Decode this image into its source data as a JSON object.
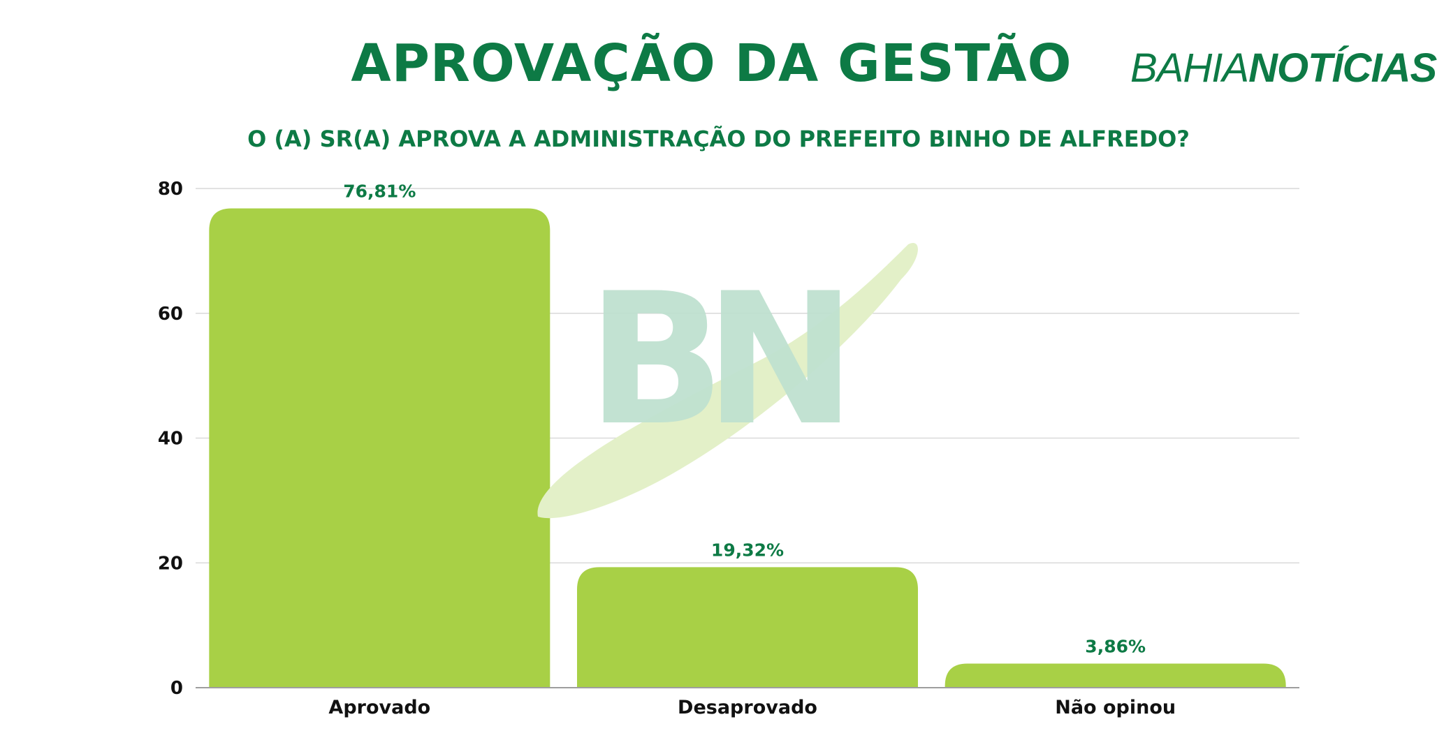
{
  "header": {
    "title": "APROVAÇÃO DA GESTÃO",
    "subtitle": "O (A) SR(A) APROVA A ADMINISTRAÇÃO DO PREFEITO BINHO DE ALFREDO?",
    "logo_light": "BAHIA",
    "logo_bold": "NOTÍCIAS",
    "watermark": "BN"
  },
  "colors": {
    "brand_green": "#0d7a45",
    "bar_fill": "#a8d046",
    "grid": "#d9d9d9"
  },
  "chart_data": {
    "type": "bar",
    "title": "APROVAÇÃO DA GESTÃO",
    "subtitle": "O (A) SR(A) APROVA A ADMINISTRAÇÃO DO PREFEITO BINHO DE ALFREDO?",
    "categories": [
      "Aprovado",
      "Desaprovado",
      "Não opinou"
    ],
    "values": [
      76.81,
      19.32,
      3.86
    ],
    "data_labels": [
      "76,81%",
      "19,32%",
      "3,86%"
    ],
    "yticks": [
      "0",
      "20",
      "40",
      "60",
      "80"
    ],
    "ylim": [
      0,
      80
    ],
    "grid": true,
    "legend": "none"
  }
}
